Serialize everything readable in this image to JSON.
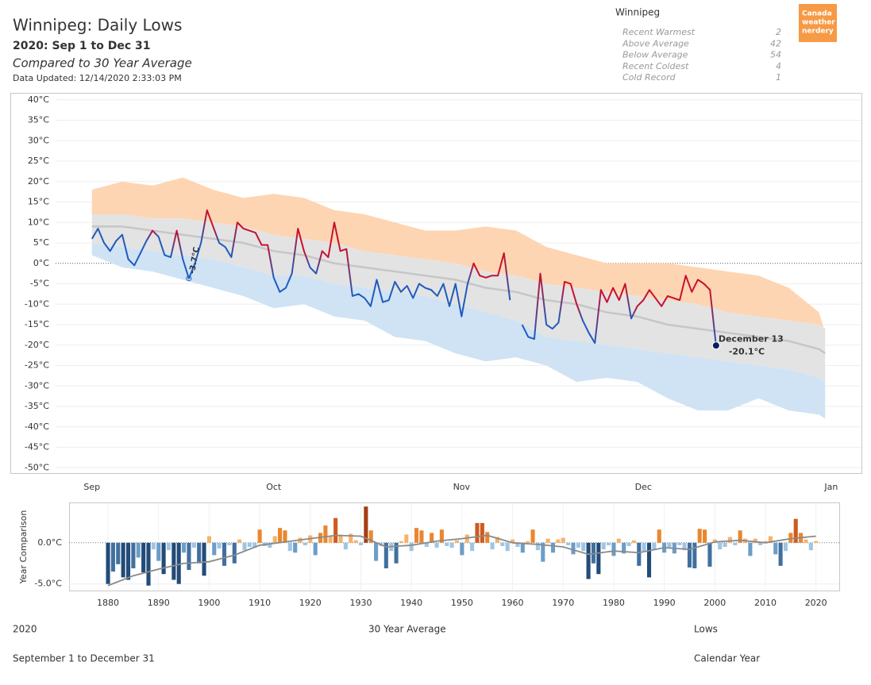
{
  "header": {
    "title": "Winnipeg: Daily Lows",
    "subtitle": "2020: Sep 1 to Dec 31",
    "description": "Compared to 30 Year Average",
    "updated": "Data Updated: 12/14/2020 2:33:03 PM"
  },
  "stats": {
    "title": "Winnipeg",
    "rows": [
      {
        "label": "Recent Warmest",
        "value": 2
      },
      {
        "label": "Above Average",
        "value": 42
      },
      {
        "label": "Below Average",
        "value": 54
      },
      {
        "label": "Recent Coldest",
        "value": 4
      },
      {
        "label": "Cold Record",
        "value": 1
      }
    ]
  },
  "logo": {
    "lines": [
      "Canada",
      "weather",
      "nerdery"
    ],
    "color": "#f79a45"
  },
  "chart_data": [
    {
      "type": "line",
      "x": [
        "2020-09-01",
        "2020-09-02",
        "2020-09-03",
        "2020-09-04",
        "2020-09-05",
        "2020-09-06",
        "2020-09-07",
        "2020-09-08",
        "2020-09-09",
        "2020-09-10",
        "2020-09-11",
        "2020-09-12",
        "2020-09-13",
        "2020-09-14",
        "2020-09-15",
        "2020-09-16",
        "2020-09-17",
        "2020-09-18",
        "2020-09-19",
        "2020-09-20",
        "2020-09-21",
        "2020-09-22",
        "2020-09-23",
        "2020-09-24",
        "2020-09-25",
        "2020-09-26",
        "2020-09-27",
        "2020-09-28",
        "2020-09-29",
        "2020-09-30",
        "2020-10-01",
        "2020-10-02",
        "2020-10-03",
        "2020-10-04",
        "2020-10-05",
        "2020-10-06",
        "2020-10-07",
        "2020-10-08",
        "2020-10-09",
        "2020-10-10",
        "2020-10-11",
        "2020-10-12",
        "2020-10-13",
        "2020-10-14",
        "2020-10-15",
        "2020-10-16",
        "2020-10-17",
        "2020-10-18",
        "2020-10-19",
        "2020-10-20",
        "2020-10-21",
        "2020-10-22",
        "2020-10-23",
        "2020-10-24",
        "2020-10-25",
        "2020-10-26",
        "2020-10-27",
        "2020-10-28",
        "2020-10-29",
        "2020-10-30",
        "2020-10-31",
        "2020-11-01",
        "2020-11-02",
        "2020-11-03",
        "2020-11-04",
        "2020-11-05",
        "2020-11-06",
        "2020-11-07",
        "2020-11-08",
        "2020-11-09",
        "2020-11-10",
        "2020-11-11",
        "2020-11-12",
        "2020-11-13",
        "2020-11-14",
        "2020-11-15",
        "2020-11-16",
        "2020-11-17",
        "2020-11-18",
        "2020-11-19",
        "2020-11-20",
        "2020-11-21",
        "2020-11-22",
        "2020-11-23",
        "2020-11-24",
        "2020-11-25",
        "2020-11-26",
        "2020-11-27",
        "2020-11-28",
        "2020-11-29",
        "2020-11-30",
        "2020-12-01",
        "2020-12-02",
        "2020-12-03",
        "2020-12-04",
        "2020-12-05",
        "2020-12-06",
        "2020-12-07",
        "2020-12-08",
        "2020-12-09",
        "2020-12-10",
        "2020-12-11",
        "2020-12-12",
        "2020-12-13"
      ],
      "series": [
        {
          "colors": {
            "above": "#c8102e",
            "below": "#1f5bbf"
          },
          "marker_color": "#0b1f5c",
          "values": [
            6,
            8.5,
            5,
            3,
            5.5,
            7,
            1,
            -0.5,
            2.5,
            5.5,
            8,
            6.5,
            2,
            1.5,
            8,
            1,
            -3.7,
            0,
            5,
            13,
            9,
            5,
            4,
            1.5,
            10,
            8.5,
            8,
            7.5,
            4.5,
            4.5,
            -3.5,
            -7,
            -6,
            -2.5,
            8.5,
            3,
            -1,
            -2.5,
            3,
            1.5,
            10,
            3,
            3.5,
            -8,
            -7.5,
            -8.5,
            -10.5,
            -4,
            -9.5,
            -9,
            -4.5,
            -7,
            -5.5,
            -8.5,
            -5,
            -6,
            -6.5,
            -8,
            -5,
            -10.5,
            -5,
            -13,
            -5,
            0,
            -3,
            -3.5,
            -3,
            -3,
            2.5,
            -9,
            null,
            -15,
            -18,
            -18.5,
            -2.5,
            -15,
            -16,
            -14.5,
            -4.5,
            -5,
            -10,
            -14,
            -17,
            -19.5,
            -6.5,
            -9.5,
            -6,
            -9,
            -5,
            -13.5,
            -10.5,
            -9,
            -6.5,
            -8.5,
            -10.5,
            -8,
            -8.5,
            -9,
            -3,
            -7,
            -4,
            -5,
            -6.5,
            -20.1
          ],
          "value_labels": [
            null,
            null,
            null,
            null,
            null,
            null,
            null,
            null,
            null,
            null,
            null,
            null,
            null,
            null,
            null,
            null,
            "-3.7°C",
            null,
            null,
            null,
            null,
            null,
            null,
            null,
            null,
            null,
            null,
            null,
            null,
            null,
            null,
            null,
            null,
            null,
            null,
            null,
            null,
            null,
            null,
            null,
            null,
            null,
            null,
            null,
            null,
            null,
            null,
            null,
            null,
            null,
            null,
            null,
            null,
            null,
            null,
            null,
            null,
            null,
            null,
            null,
            null,
            null,
            null,
            null,
            null,
            null,
            null,
            null,
            null,
            null,
            null,
            null,
            null,
            null,
            null,
            null,
            null,
            null,
            null,
            null,
            null,
            null,
            null,
            null,
            null,
            null,
            null,
            null,
            null,
            null,
            null,
            null,
            null,
            null,
            null,
            null,
            null,
            null,
            null,
            null,
            null,
            null,
            null,
            "-20.1°C"
          ]
        }
      ],
      "annotation": "December 13",
      "bands": {
        "x": [
          "2020-09-01",
          "2020-09-06",
          "2020-09-11",
          "2020-09-16",
          "2020-09-21",
          "2020-09-26",
          "2020-10-01",
          "2020-10-06",
          "2020-10-11",
          "2020-10-16",
          "2020-10-21",
          "2020-10-26",
          "2020-10-31",
          "2020-11-05",
          "2020-11-10",
          "2020-11-15",
          "2020-11-20",
          "2020-11-25",
          "2020-11-30",
          "2020-12-05",
          "2020-12-10",
          "2020-12-15",
          "2020-12-20",
          "2020-12-25",
          "2020-12-30",
          "2020-12-31"
        ],
        "high": [
          18,
          20,
          19,
          21,
          18,
          16,
          17,
          16,
          13,
          12,
          10,
          8,
          8,
          9,
          8,
          4,
          2,
          0,
          0,
          0,
          -1,
          -2,
          -3,
          -6,
          -12,
          -17
        ],
        "upper_normal": [
          12,
          12,
          11,
          11,
          10,
          9,
          7,
          6,
          5,
          3,
          2,
          1,
          0,
          -2,
          -3,
          -5,
          -6,
          -7,
          -8,
          -9,
          -10,
          -12,
          -13,
          -14,
          -15,
          -16
        ],
        "average": [
          9,
          9,
          8,
          7,
          6,
          5,
          3,
          2,
          0,
          -1,
          -2,
          -3,
          -4,
          -6,
          -7,
          -9,
          -10,
          -12,
          -13,
          -15,
          -16,
          -17,
          -18,
          -19,
          -21,
          -22
        ],
        "lower_normal": [
          5,
          4,
          3,
          2,
          1,
          -1,
          -3,
          -3,
          -5,
          -6,
          -7,
          -8,
          -10,
          -12,
          -14,
          -18,
          -19,
          -20,
          -21,
          -22,
          -23,
          -24,
          -25,
          -26,
          -28,
          -29
        ],
        "record_low": [
          2,
          -1,
          -2,
          -4,
          -6,
          -8,
          -11,
          -10,
          -13,
          -14,
          -18,
          -19,
          -22,
          -24,
          -23,
          -25,
          -29,
          -28,
          -29,
          -33,
          -36,
          -36,
          -33,
          -36,
          -37,
          -38
        ],
        "fills": [
          "#fdd5b2",
          "#e3e3e3",
          "#cfe3f4"
        ],
        "average_color": "#c6c6c6"
      },
      "xlim": [
        "2020-08-26",
        "2021-01-06"
      ],
      "xticks": [
        {
          "value": "2020-09-01",
          "label": "Sep"
        },
        {
          "value": "2020-10-01",
          "label": "Oct"
        },
        {
          "value": "2020-11-01",
          "label": "Nov"
        },
        {
          "value": "2020-12-01",
          "label": "Dec"
        },
        {
          "value": "2021-01-01",
          "label": "Jan"
        }
      ],
      "ylim": [
        -51.5,
        41.7
      ],
      "yticks": [
        {
          "value": 40,
          "label": "40°C"
        },
        {
          "value": 35,
          "label": "35°C"
        },
        {
          "value": 30,
          "label": "30°C"
        },
        {
          "value": 25,
          "label": "25°C"
        },
        {
          "value": 20,
          "label": "20°C"
        },
        {
          "value": 15,
          "label": "15°C"
        },
        {
          "value": 10,
          "label": "10°C"
        },
        {
          "value": 5,
          "label": "5°C"
        },
        {
          "value": 0,
          "label": "0°C"
        },
        {
          "value": -5,
          "label": "-5°C"
        },
        {
          "value": -10,
          "label": "-10°C"
        },
        {
          "value": -15,
          "label": "-15°C"
        },
        {
          "value": -20,
          "label": "-20°C"
        },
        {
          "value": -25,
          "label": "-25°C"
        },
        {
          "value": -30,
          "label": "-30°C"
        },
        {
          "value": -35,
          "label": "-35°C"
        },
        {
          "value": -40,
          "label": "-40°C"
        },
        {
          "value": -45,
          "label": "-45°C"
        },
        {
          "value": -50,
          "label": "-50°C"
        }
      ],
      "grid": true
    },
    {
      "type": "bar",
      "ylabel": "Year Comparison",
      "x": [
        1880,
        1881,
        1882,
        1883,
        1884,
        1885,
        1886,
        1887,
        1888,
        1889,
        1890,
        1891,
        1892,
        1893,
        1894,
        1895,
        1896,
        1897,
        1898,
        1899,
        1900,
        1901,
        1902,
        1903,
        1904,
        1905,
        1906,
        1907,
        1908,
        1909,
        1910,
        1911,
        1912,
        1913,
        1914,
        1915,
        1916,
        1917,
        1918,
        1919,
        1920,
        1921,
        1922,
        1923,
        1924,
        1925,
        1926,
        1927,
        1928,
        1929,
        1930,
        1931,
        1932,
        1933,
        1934,
        1935,
        1936,
        1937,
        1938,
        1939,
        1940,
        1941,
        1942,
        1943,
        1944,
        1945,
        1946,
        1947,
        1948,
        1949,
        1950,
        1951,
        1952,
        1953,
        1954,
        1955,
        1956,
        1957,
        1958,
        1959,
        1960,
        1961,
        1962,
        1963,
        1964,
        1965,
        1966,
        1967,
        1968,
        1969,
        1970,
        1971,
        1972,
        1973,
        1974,
        1975,
        1976,
        1977,
        1978,
        1979,
        1980,
        1981,
        1982,
        1983,
        1984,
        1985,
        1986,
        1987,
        1988,
        1989,
        1990,
        1991,
        1992,
        1993,
        1994,
        1995,
        1996,
        1997,
        1998,
        1999,
        2000,
        2001,
        2002,
        2003,
        2004,
        2005,
        2006,
        2007,
        2008,
        2009,
        2010,
        2011,
        2012,
        2013,
        2014,
        2015,
        2016,
        2017,
        2018,
        2019,
        2020
      ],
      "values": [
        -5.0,
        -3.5,
        -2.6,
        -4.2,
        -4.5,
        -3.1,
        -1.8,
        -3.6,
        -5.2,
        -0.8,
        -2.2,
        -3.8,
        -0.9,
        -4.5,
        -5.0,
        -1.2,
        -3.3,
        -0.6,
        -2.5,
        -4.0,
        0.8,
        -1.5,
        -0.7,
        -2.8,
        -0.3,
        -2.5,
        0.4,
        -0.9,
        -0.5,
        -0.6,
        1.6,
        -0.4,
        -0.6,
        0.8,
        1.8,
        1.5,
        -1.0,
        -1.2,
        0.6,
        -0.3,
        0.9,
        -1.5,
        1.2,
        2.1,
        0.8,
        3.0,
        1.0,
        -0.8,
        1.1,
        0.3,
        -0.3,
        4.4,
        1.5,
        -2.2,
        -0.4,
        -3.1,
        -1.0,
        -2.5,
        0.2,
        1.0,
        -1.0,
        1.8,
        1.5,
        -0.5,
        1.2,
        -0.6,
        1.6,
        -0.4,
        -0.6,
        0.3,
        -1.5,
        1.0,
        -1.0,
        2.4,
        2.4,
        1.3,
        -0.8,
        0.7,
        -0.4,
        -1.0,
        0.4,
        -0.5,
        -1.2,
        0.2,
        1.6,
        -0.9,
        -2.3,
        0.5,
        -1.2,
        0.4,
        0.6,
        -0.3,
        -1.4,
        -0.6,
        -1.0,
        -4.4,
        -2.5,
        -3.8,
        -0.8,
        -0.3,
        -1.6,
        0.5,
        -1.3,
        -0.4,
        0.3,
        -2.8,
        -1.0,
        -4.2,
        -0.9,
        1.6,
        -1.2,
        -0.7,
        -1.3,
        -0.3,
        -0.9,
        -3.0,
        -3.1,
        1.7,
        1.6,
        -2.9,
        0.4,
        -0.8,
        -0.5,
        0.7,
        -0.3,
        1.5,
        0.5,
        -1.6,
        0.5,
        -0.3,
        0.2,
        0.8,
        -1.4,
        -2.8,
        -1.0,
        1.2,
        2.9,
        1.2,
        0.4,
        -0.9,
        0.2
      ],
      "positive_colors": [
        "#f6b26b",
        "#e9872f",
        "#cf5a1f",
        "#a63d14"
      ],
      "negative_colors": [
        "#9fc5e3",
        "#6b9dc8",
        "#41709f",
        "#224b78"
      ],
      "trend": {
        "x": [
          1880,
          1885,
          1890,
          1895,
          1900,
          1905,
          1910,
          1915,
          1920,
          1925,
          1930,
          1935,
          1940,
          1945,
          1950,
          1955,
          1960,
          1965,
          1970,
          1975,
          1980,
          1985,
          1990,
          1995,
          2000,
          2005,
          2010,
          2015,
          2020
        ],
        "values": [
          -5.2,
          -4.0,
          -3.2,
          -2.5,
          -2.3,
          -1.5,
          -0.3,
          0.1,
          0.5,
          0.9,
          0.8,
          -0.5,
          -0.3,
          0.2,
          0.5,
          0.9,
          0.0,
          -0.2,
          -0.5,
          -1.4,
          -1.0,
          -1.2,
          -0.6,
          -0.8,
          0.1,
          0.3,
          0.0,
          0.5,
          0.8
        ],
        "color": "#8a8a8a"
      },
      "xlim": [
        1872.3,
        2024.6
      ],
      "xticks": [
        1880,
        1890,
        1900,
        1910,
        1920,
        1930,
        1940,
        1950,
        1960,
        1970,
        1980,
        1990,
        2000,
        2010,
        2020
      ],
      "ylim": [
        -5.8,
        4.8
      ],
      "yticks": [
        {
          "value": 0,
          "label": "0.0°C"
        },
        {
          "value": -5,
          "label": "-5.0°C"
        }
      ],
      "grid": true
    }
  ],
  "footer": {
    "year": "2020",
    "range": "September 1 to December 31",
    "average": "30 Year Average",
    "measure": "Lows",
    "axis": "Calendar Year"
  }
}
